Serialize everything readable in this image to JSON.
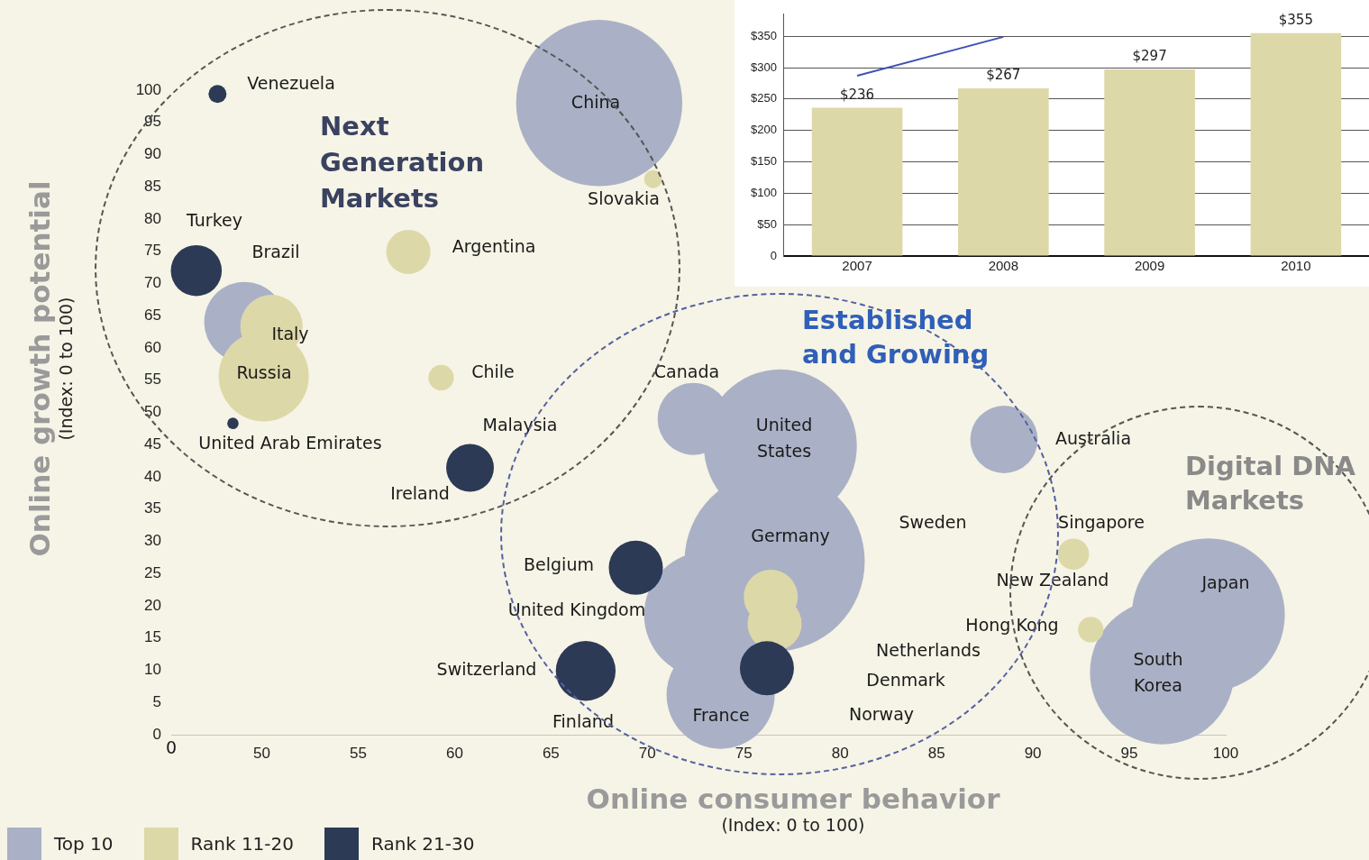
{
  "chart_data": [
    {
      "type": "bubble",
      "xlabel": "Online consumer behavior\n(Index: 0 to 100)",
      "ylabel": "Online growth potential\n(Index: 0 to 100)",
      "xlim": [
        45.3,
        100
      ],
      "ylim": [
        0,
        100
      ],
      "xticks": [
        50,
        55,
        60,
        65,
        70,
        75,
        80,
        85,
        90,
        95,
        100
      ],
      "yticks": [
        0,
        5,
        10,
        15,
        20,
        25,
        30,
        35,
        40,
        45,
        50,
        55,
        60,
        65,
        70,
        75,
        80,
        85,
        90,
        95,
        100
      ],
      "legend": "bottom left",
      "series": [
        {
          "name": "Top 10",
          "color": "#aab1c6",
          "x": [
            67.5,
            49.1,
            72.4,
            76.9,
            88.5,
            76.6,
            73.1,
            73.8,
            99.1,
            96.7
          ],
          "values": [
            98,
            64,
            49,
            44.8,
            45.8,
            26.9,
            18.6,
            6.2,
            18.6,
            9.7
          ],
          "sizes": [
            0.85,
            0.2,
            0.16,
            0.72,
            0.14,
            1,
            0.49,
            0.36,
            0.72,
            0.64
          ]
        },
        {
          "name": "Rank 11-20",
          "color": "#ddd8a8",
          "x": [
            50.5,
            50.1,
            57.6,
            59.3,
            70.3,
            76.4,
            76.6,
            92.1,
            93
          ],
          "values": [
            63.4,
            55.6,
            74.9,
            55.4,
            86.2,
            21.4,
            17.2,
            28,
            16.3
          ],
          "sizes": [
            0.12,
            0.25,
            0.06,
            0.02,
            0.01,
            0.09,
            0.09,
            0.03,
            0.02
          ]
        },
        {
          "name": "Rank 21-30",
          "color": "#2d3a55",
          "x": [
            47.7,
            46.6,
            48.5,
            60.8,
            69.4,
            66.8,
            76.2
          ],
          "values": [
            99.4,
            72,
            48.3,
            41.4,
            25.9,
            9.9,
            10.3
          ],
          "sizes": [
            0.01,
            0.08,
            0.004,
            0.07,
            0.09,
            0.11,
            0.09
          ]
        }
      ],
      "annotations": [
        "Next\nGeneration\nMarkets",
        "Established\nand Growing",
        "Digital DNA\nMarkets",
        "0",
        "Venezuela",
        "China",
        "Slovakia",
        "Turkey",
        "Brazil",
        "Italy",
        "Russia",
        "Argentina",
        "Chile",
        "United Arab Emirates",
        "Malaysia",
        "Ireland",
        "Canada",
        "United\nStates",
        "Australia",
        "Germany",
        "Sweden",
        "Singapore",
        "Belgium",
        "New Zealand",
        "Japan",
        "United Kingdom",
        "Hong Kong",
        "Netherlands",
        "Switzerland",
        "South\nKorea",
        "Denmark",
        "Finland",
        "France",
        "Norway"
      ]
    },
    {
      "type": "bar",
      "categories": [
        "2007",
        "2008",
        "2009",
        "2010"
      ],
      "ylim": [
        0,
        385
      ],
      "yticks": [
        0,
        {
          "value": 50,
          "label": "$50"
        },
        {
          "value": 100,
          "label": "$100"
        },
        {
          "value": 150,
          "label": "$150"
        },
        {
          "value": 200,
          "label": "$200"
        },
        {
          "value": 250,
          "label": "$250"
        },
        {
          "value": 300,
          "label": "$300"
        },
        {
          "value": 350,
          "label": "$350"
        }
      ],
      "grid": "y",
      "series": [
        {
          "type": "bar",
          "color": "#ddd8a8",
          "values": [
            236,
            267,
            297,
            355
          ],
          "value_labels": [
            "$236",
            "$267",
            "$297",
            "$355"
          ]
        },
        {
          "type": "line",
          "color": "#3f51b5",
          "marker": "none",
          "values": [
            287,
            349,
            null,
            null
          ]
        }
      ]
    }
  ]
}
